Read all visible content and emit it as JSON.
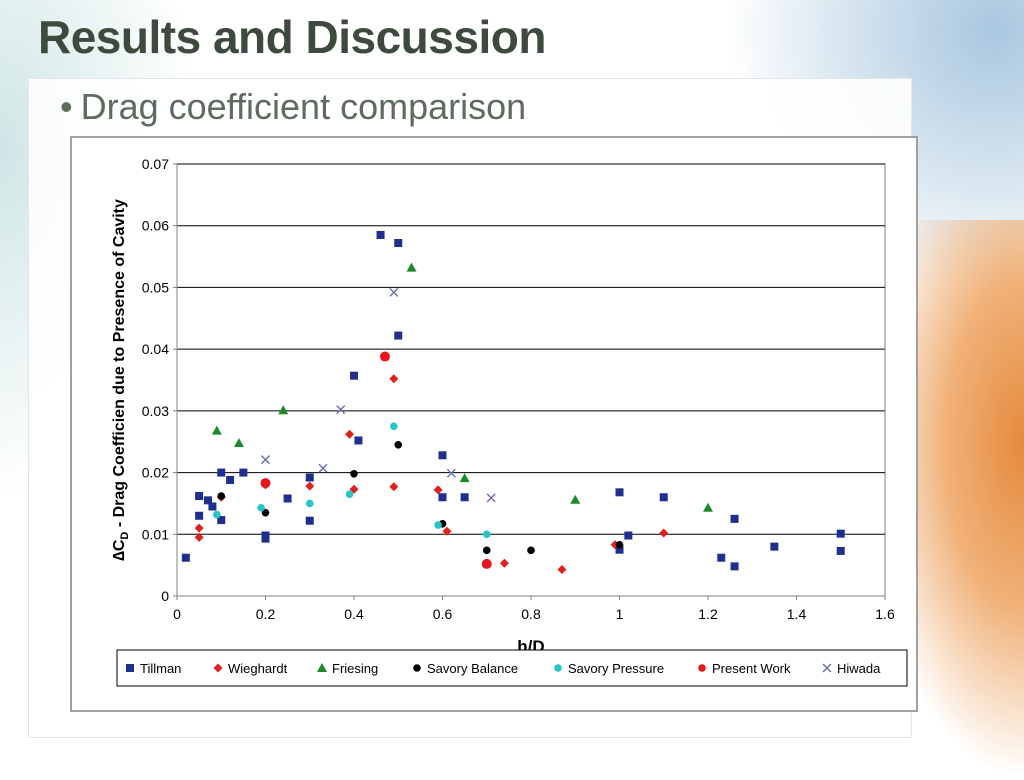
{
  "slide": {
    "title": "Results and Discussion",
    "bullet": "Drag coefficient comparison"
  },
  "chart_data": {
    "type": "scatter",
    "xlabel": "h/D",
    "ylabel_prefix": "∆C",
    "ylabel_sub": "D",
    "ylabel_rest": " - Drag Coefficien due to Presence of Cavity",
    "xlim": [
      0,
      1.6
    ],
    "ylim": [
      0,
      0.07
    ],
    "x_ticks": [
      0,
      0.2,
      0.4,
      0.6,
      0.8,
      1,
      1.2,
      1.4,
      1.6
    ],
    "x_tick_labels": [
      "0",
      "0.2",
      "0.4",
      "0.6",
      "0.8",
      "1",
      "1.2",
      "1.4",
      "1.6"
    ],
    "y_ticks": [
      0,
      0.01,
      0.02,
      0.03,
      0.04,
      0.05,
      0.06,
      0.07
    ],
    "y_tick_labels": [
      "0",
      "0.01",
      "0.02",
      "0.03",
      "0.04",
      "0.05",
      "0.06",
      "0.07"
    ],
    "grid": "horizontal",
    "legend_placement": "bottom",
    "series": [
      {
        "name": "Tillman",
        "marker": "square",
        "color": "#1f2f8f",
        "points": [
          [
            0.02,
            0.0062
          ],
          [
            0.05,
            0.0162
          ],
          [
            0.05,
            0.013
          ],
          [
            0.07,
            0.0155
          ],
          [
            0.08,
            0.0145
          ],
          [
            0.1,
            0.02
          ],
          [
            0.1,
            0.0123
          ],
          [
            0.12,
            0.0188
          ],
          [
            0.15,
            0.02
          ],
          [
            0.2,
            0.0098
          ],
          [
            0.2,
            0.0093
          ],
          [
            0.25,
            0.0158
          ],
          [
            0.3,
            0.0192
          ],
          [
            0.3,
            0.0122
          ],
          [
            0.4,
            0.0357
          ],
          [
            0.41,
            0.0252
          ],
          [
            0.46,
            0.0585
          ],
          [
            0.5,
            0.0572
          ],
          [
            0.5,
            0.0422
          ],
          [
            0.6,
            0.0228
          ],
          [
            0.6,
            0.016
          ],
          [
            0.65,
            0.016
          ],
          [
            1.0,
            0.0168
          ],
          [
            1.0,
            0.0075
          ],
          [
            1.02,
            0.0098
          ],
          [
            1.1,
            0.016
          ],
          [
            1.23,
            0.0062
          ],
          [
            1.26,
            0.0048
          ],
          [
            1.26,
            0.0125
          ],
          [
            1.35,
            0.008
          ],
          [
            1.5,
            0.0101
          ],
          [
            1.5,
            0.0073
          ]
        ]
      },
      {
        "name": "Wieghardt",
        "marker": "diamond",
        "color": "#e0201a",
        "points": [
          [
            0.05,
            0.011
          ],
          [
            0.05,
            0.0095
          ],
          [
            0.1,
            0.016
          ],
          [
            0.2,
            0.018
          ],
          [
            0.3,
            0.0178
          ],
          [
            0.39,
            0.0262
          ],
          [
            0.4,
            0.0173
          ],
          [
            0.49,
            0.0352
          ],
          [
            0.49,
            0.0177
          ],
          [
            0.59,
            0.0172
          ],
          [
            0.61,
            0.0105
          ],
          [
            0.74,
            0.0053
          ],
          [
            0.87,
            0.0043
          ],
          [
            0.99,
            0.0083
          ],
          [
            1.1,
            0.0102
          ]
        ]
      },
      {
        "name": "Friesing",
        "marker": "triangle",
        "color": "#1c8a28",
        "points": [
          [
            0.09,
            0.0268
          ],
          [
            0.14,
            0.0248
          ],
          [
            0.24,
            0.0301
          ],
          [
            0.53,
            0.0532
          ],
          [
            0.65,
            0.0191
          ],
          [
            0.9,
            0.0156
          ],
          [
            1.2,
            0.0143
          ]
        ]
      },
      {
        "name": "Savory Balance",
        "marker": "circle",
        "color": "#000000",
        "points": [
          [
            0.1,
            0.0162
          ],
          [
            0.2,
            0.0135
          ],
          [
            0.4,
            0.0198
          ],
          [
            0.5,
            0.0245
          ],
          [
            0.6,
            0.0117
          ],
          [
            0.7,
            0.0074
          ],
          [
            0.8,
            0.0074
          ],
          [
            1.0,
            0.0083
          ]
        ]
      },
      {
        "name": "Savory Pressure",
        "marker": "circle",
        "color": "#26c4c4",
        "points": [
          [
            0.09,
            0.0132
          ],
          [
            0.19,
            0.0143
          ],
          [
            0.3,
            0.015
          ],
          [
            0.39,
            0.0165
          ],
          [
            0.49,
            0.0275
          ],
          [
            0.59,
            0.0115
          ],
          [
            0.7,
            0.01
          ]
        ]
      },
      {
        "name": "Present Work",
        "marker": "bigcircle",
        "color": "#e8161c",
        "points": [
          [
            0.2,
            0.0183
          ],
          [
            0.47,
            0.0388
          ],
          [
            0.7,
            0.0052
          ]
        ]
      },
      {
        "name": "Hiwada",
        "marker": "x",
        "color": "#6a6ab8",
        "points": [
          [
            0.2,
            0.0221
          ],
          [
            0.33,
            0.0207
          ],
          [
            0.37,
            0.0302
          ],
          [
            0.49,
            0.0492
          ],
          [
            0.62,
            0.0199
          ],
          [
            0.71,
            0.0159
          ]
        ]
      }
    ]
  }
}
